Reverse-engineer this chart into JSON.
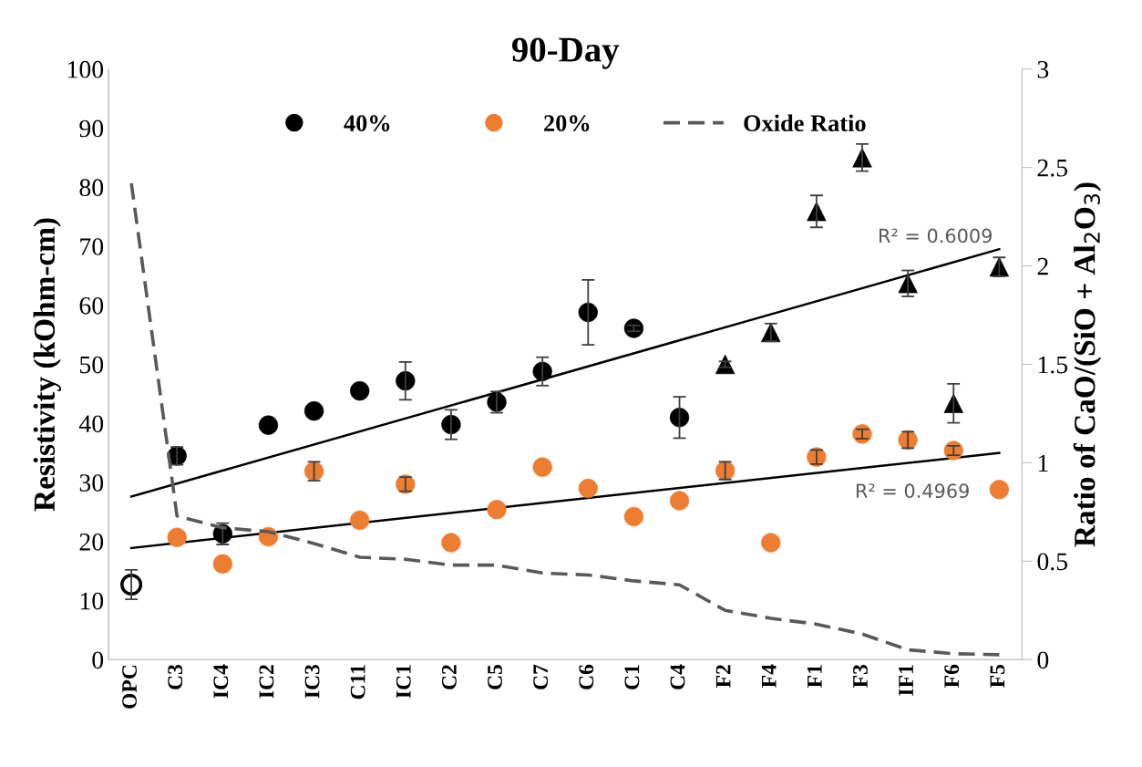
{
  "chart_data": {
    "type": "scatter",
    "title": "90-Day",
    "ylabel": "Resistivity (kOhm-cm)",
    "y2label": "Ratio of CaO/(SiO + Al$_{2}$O$_{3}$)",
    "categories": [
      "OPC",
      "C3",
      "IC4",
      "IC2",
      "IC3",
      "C11",
      "IC1",
      "C2",
      "C5",
      "C7",
      "C6",
      "C1",
      "C4",
      "F2",
      "F4",
      "F1",
      "F3",
      "IF1",
      "F6",
      "F5"
    ],
    "ylim": [
      0,
      100
    ],
    "yticks": [
      0,
      10,
      20,
      30,
      40,
      50,
      60,
      70,
      80,
      90,
      100
    ],
    "y2lim": [
      0,
      3
    ],
    "y2ticks": [
      0,
      0.5,
      1,
      1.5,
      2,
      2.5,
      3
    ],
    "grid": false,
    "legend": "top",
    "annotations": [
      "R² = 0.6009",
      "R² = 0.4969"
    ],
    "series": [
      {
        "name": "40%",
        "marker": "circle",
        "color": "#000000",
        "values": [
          null,
          34.5,
          21.3,
          39.7,
          42.1,
          45.5,
          47.2,
          39.8,
          43.6,
          48.8,
          58.8,
          56.1,
          41.0,
          null,
          null,
          null,
          null,
          null,
          null,
          null
        ],
        "errors": [
          null,
          1.5,
          1.8,
          null,
          null,
          null,
          3.2,
          2.5,
          1.8,
          2.4,
          5.5,
          0.5,
          3.5,
          null,
          null,
          null,
          null,
          null,
          null,
          null
        ]
      },
      {
        "marker": "triangle",
        "color": "#000000",
        "values": [
          null,
          null,
          null,
          null,
          null,
          null,
          null,
          null,
          null,
          null,
          null,
          null,
          null,
          50.0,
          55.4,
          75.9,
          85.0,
          63.7,
          43.4,
          66.5
        ],
        "errors": [
          null,
          null,
          null,
          null,
          null,
          null,
          null,
          null,
          null,
          null,
          null,
          null,
          null,
          0.5,
          1.5,
          2.7,
          2.3,
          2.2,
          3.3,
          1.6
        ]
      },
      {
        "marker": "circle",
        "color": "#ffffff",
        "values": [
          12.7,
          null,
          null,
          null,
          null,
          null,
          null,
          null,
          null,
          null,
          null,
          null,
          null,
          null,
          null,
          null,
          null,
          null,
          null,
          null
        ],
        "errors": [
          2.5,
          null,
          null,
          null,
          null,
          null,
          null,
          null,
          null,
          null,
          null,
          null,
          null,
          null,
          null,
          null,
          null,
          null,
          null,
          null
        ]
      },
      {
        "name": "20%",
        "marker": "circle",
        "color": "#ed7d31",
        "values": [
          null,
          20.7,
          16.2,
          20.8,
          31.9,
          23.6,
          29.7,
          19.8,
          25.4,
          32.6,
          29.0,
          24.2,
          26.9,
          32.0,
          19.8,
          34.3,
          38.2,
          37.2,
          35.4,
          28.8
        ],
        "errors": [
          null,
          null,
          null,
          null,
          1.6,
          null,
          1.2,
          null,
          null,
          null,
          null,
          null,
          null,
          1.5,
          null,
          1.2,
          0.8,
          1.4,
          0.8,
          null
        ]
      },
      {
        "name": "Oxide Ratio",
        "type": "line",
        "axis": "y2",
        "marker": "none",
        "line_style": "dashed",
        "color": "#595959",
        "values": [
          2.42,
          0.73,
          0.67,
          0.65,
          0.59,
          0.52,
          0.51,
          0.48,
          0.48,
          0.44,
          0.43,
          0.4,
          0.38,
          0.25,
          0.21,
          0.18,
          0.13,
          0.05,
          0.03,
          0.025
        ]
      },
      {
        "type": "line",
        "marker": "none",
        "line_style": "solid",
        "color": "#000000",
        "x": [
          "OPC",
          "F5"
        ],
        "values": [
          27.6,
          69.5
        ]
      },
      {
        "type": "line",
        "marker": "none",
        "line_style": "solid",
        "color": "#000000",
        "x": [
          "OPC",
          "F5"
        ],
        "values": [
          18.9,
          35.0
        ]
      }
    ]
  }
}
